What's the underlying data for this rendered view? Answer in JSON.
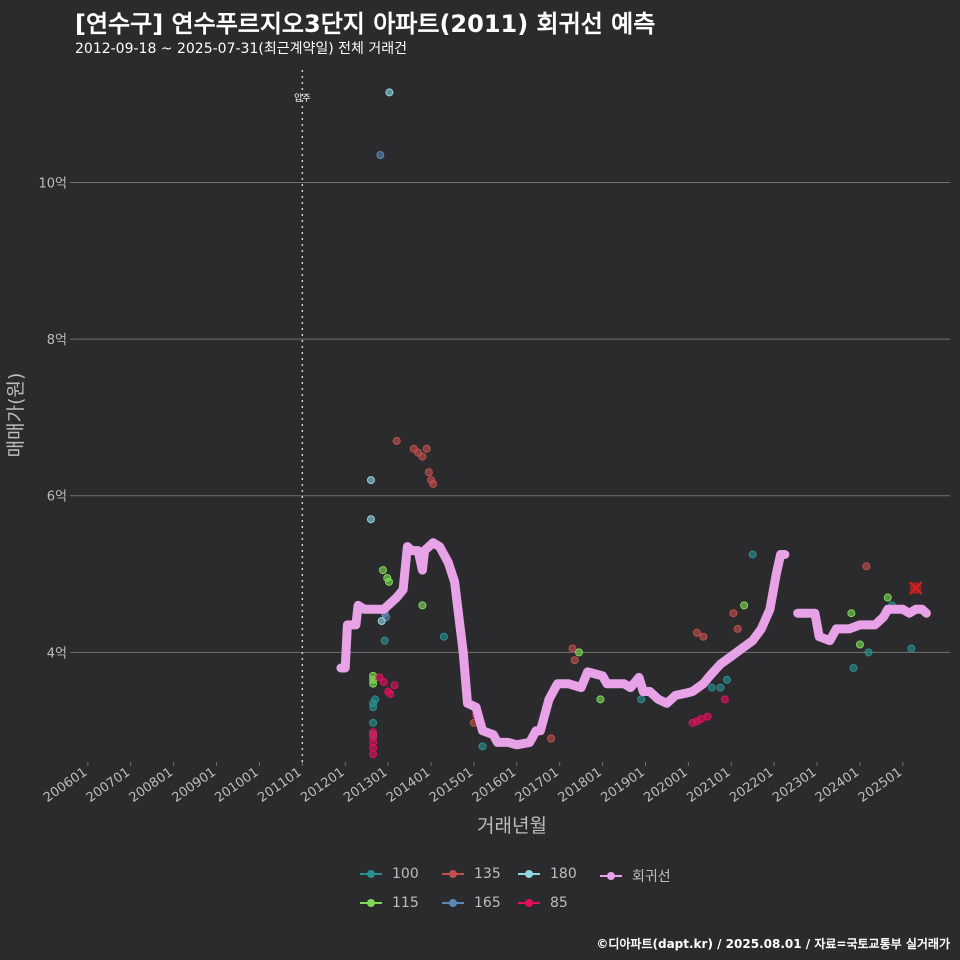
{
  "header": {
    "title": "[연수구] 연수푸르지오3단지 아파트(2011) 회귀선 예측",
    "subtitle": "2012-09-18 ~ 2025-07-31(최근계약일) 전체 거래건"
  },
  "footer": {
    "caption": "©디아파트(dapt.kr) / 2025.08.01 / 자료=국토교통부 실거래가"
  },
  "colors": {
    "background": "#2b2b2d",
    "grid": "#707070",
    "regression": "#e8a3e8",
    "marker": "#e02020",
    "100": "#2a8f8f",
    "115": "#7ed957",
    "135": "#c0504d",
    "165": "#5b86b8",
    "180": "#8fd6e0",
    "85": "#e0105f"
  },
  "chart_data": {
    "type": "scatter",
    "xlabel": "거래년월",
    "ylabel": "매매가(원)",
    "x_range": [
      2005.7,
      2026.1
    ],
    "ylim": [
      2.6,
      11.5
    ],
    "y_ticks": [
      {
        "value": 4,
        "label": "4억"
      },
      {
        "value": 6,
        "label": "6억"
      },
      {
        "value": 8,
        "label": "8억"
      },
      {
        "value": 10,
        "label": "10억"
      }
    ],
    "x_ticks": [
      {
        "value": 2006.0,
        "label": "200601"
      },
      {
        "value": 2007.0,
        "label": "200701"
      },
      {
        "value": 2008.0,
        "label": "200801"
      },
      {
        "value": 2009.0,
        "label": "200901"
      },
      {
        "value": 2010.0,
        "label": "201001"
      },
      {
        "value": 2011.0,
        "label": "201101"
      },
      {
        "value": 2012.0,
        "label": "201201"
      },
      {
        "value": 2013.0,
        "label": "201301"
      },
      {
        "value": 2014.0,
        "label": "201401"
      },
      {
        "value": 2015.0,
        "label": "201501"
      },
      {
        "value": 2016.0,
        "label": "201601"
      },
      {
        "value": 2017.0,
        "label": "201701"
      },
      {
        "value": 2018.0,
        "label": "201801"
      },
      {
        "value": 2019.0,
        "label": "201901"
      },
      {
        "value": 2020.0,
        "label": "202001"
      },
      {
        "value": 2021.0,
        "label": "202101"
      },
      {
        "value": 2022.0,
        "label": "202201"
      },
      {
        "value": 2023.0,
        "label": "202301"
      },
      {
        "value": 2024.0,
        "label": "202401"
      },
      {
        "value": 2025.0,
        "label": "202501"
      }
    ],
    "move_in": {
      "x": 2011.0,
      "label": "입주"
    },
    "legend": [
      "100",
      "115",
      "135",
      "165",
      "180",
      "85",
      "회귀선"
    ],
    "series": [
      {
        "name": "100",
        "points": [
          [
            2012.65,
            3.3
          ],
          [
            2012.65,
            3.1
          ],
          [
            2012.65,
            2.95
          ],
          [
            2012.65,
            3.35
          ],
          [
            2012.7,
            3.4
          ],
          [
            2012.92,
            4.15
          ],
          [
            2014.3,
            4.2
          ],
          [
            2015.2,
            2.8
          ],
          [
            2018.9,
            3.4
          ],
          [
            2020.55,
            3.55
          ],
          [
            2020.75,
            3.55
          ],
          [
            2020.9,
            3.65
          ],
          [
            2021.5,
            5.25
          ],
          [
            2023.85,
            3.8
          ],
          [
            2024.2,
            4.0
          ],
          [
            2025.2,
            4.05
          ],
          [
            2024.75,
            4.6
          ]
        ]
      },
      {
        "name": "115",
        "points": [
          [
            2012.65,
            3.7
          ],
          [
            2012.65,
            3.65
          ],
          [
            2012.65,
            3.6
          ],
          [
            2012.88,
            5.05
          ],
          [
            2012.98,
            4.95
          ],
          [
            2013.02,
            4.9
          ],
          [
            2013.8,
            4.6
          ],
          [
            2017.45,
            4.0
          ],
          [
            2017.95,
            3.4
          ],
          [
            2021.3,
            4.6
          ],
          [
            2023.8,
            4.5
          ],
          [
            2024.0,
            4.1
          ],
          [
            2024.65,
            4.7
          ]
        ]
      },
      {
        "name": "135",
        "points": [
          [
            2013.2,
            6.7
          ],
          [
            2013.6,
            6.6
          ],
          [
            2013.7,
            6.55
          ],
          [
            2013.8,
            6.5
          ],
          [
            2013.9,
            6.6
          ],
          [
            2013.95,
            6.3
          ],
          [
            2014.0,
            6.2
          ],
          [
            2014.05,
            6.15
          ],
          [
            2015.0,
            3.1
          ],
          [
            2016.8,
            2.9
          ],
          [
            2017.3,
            4.05
          ],
          [
            2017.35,
            3.9
          ],
          [
            2020.2,
            4.25
          ],
          [
            2020.35,
            4.2
          ],
          [
            2021.05,
            4.5
          ],
          [
            2021.15,
            4.3
          ],
          [
            2024.15,
            5.1
          ]
        ]
      },
      {
        "name": "165",
        "points": [
          [
            2012.82,
            10.35
          ],
          [
            2012.92,
            4.5
          ],
          [
            2012.95,
            4.45
          ]
        ]
      },
      {
        "name": "180",
        "points": [
          [
            2013.03,
            11.15
          ],
          [
            2012.85,
            4.4
          ],
          [
            2012.6,
            6.2
          ],
          [
            2012.6,
            5.7
          ]
        ]
      },
      {
        "name": "85",
        "points": [
          [
            2012.65,
            2.7
          ],
          [
            2012.65,
            2.78
          ],
          [
            2012.65,
            2.85
          ],
          [
            2012.65,
            2.92
          ],
          [
            2012.65,
            2.98
          ],
          [
            2012.8,
            3.68
          ],
          [
            2012.9,
            3.62
          ],
          [
            2013.0,
            3.5
          ],
          [
            2013.05,
            3.47
          ],
          [
            2013.15,
            3.58
          ],
          [
            2014.8,
            3.58
          ],
          [
            2015.05,
            3.2
          ],
          [
            2020.1,
            3.1
          ],
          [
            2020.2,
            3.12
          ],
          [
            2020.3,
            3.15
          ],
          [
            2020.45,
            3.18
          ],
          [
            2020.85,
            3.4
          ]
        ]
      }
    ],
    "highlight": {
      "x": 2025.3,
      "y": 4.82
    },
    "regression_segments": [
      [
        [
          2011.9,
          3.8
        ],
        [
          2012.0,
          3.8
        ],
        [
          2012.05,
          4.35
        ],
        [
          2012.25,
          4.35
        ],
        [
          2012.3,
          4.6
        ],
        [
          2012.45,
          4.55
        ],
        [
          2012.9,
          4.55
        ],
        [
          2013.2,
          4.7
        ],
        [
          2013.35,
          4.8
        ],
        [
          2013.45,
          5.35
        ],
        [
          2013.55,
          5.3
        ],
        [
          2013.7,
          5.3
        ],
        [
          2013.8,
          5.05
        ],
        [
          2013.85,
          5.3
        ],
        [
          2014.05,
          5.4
        ],
        [
          2014.2,
          5.35
        ],
        [
          2014.4,
          5.15
        ],
        [
          2014.55,
          4.9
        ],
        [
          2014.75,
          4.0
        ],
        [
          2014.85,
          3.35
        ],
        [
          2015.05,
          3.3
        ],
        [
          2015.2,
          3.0
        ],
        [
          2015.45,
          2.95
        ],
        [
          2015.55,
          2.85
        ],
        [
          2015.8,
          2.85
        ],
        [
          2016.0,
          2.82
        ],
        [
          2016.3,
          2.85
        ],
        [
          2016.45,
          3.0
        ],
        [
          2016.55,
          3.0
        ],
        [
          2016.75,
          3.4
        ],
        [
          2016.95,
          3.6
        ],
        [
          2017.2,
          3.6
        ],
        [
          2017.5,
          3.55
        ],
        [
          2017.65,
          3.75
        ],
        [
          2018.0,
          3.7
        ],
        [
          2018.1,
          3.6
        ],
        [
          2018.5,
          3.6
        ],
        [
          2018.65,
          3.55
        ],
        [
          2018.85,
          3.68
        ],
        [
          2018.95,
          3.5
        ],
        [
          2019.1,
          3.5
        ],
        [
          2019.3,
          3.4
        ],
        [
          2019.5,
          3.35
        ],
        [
          2019.7,
          3.45
        ],
        [
          2019.95,
          3.48
        ],
        [
          2020.1,
          3.5
        ],
        [
          2020.35,
          3.6
        ],
        [
          2020.5,
          3.7
        ],
        [
          2020.75,
          3.85
        ],
        [
          2021.0,
          3.95
        ],
        [
          2021.25,
          4.05
        ],
        [
          2021.5,
          4.15
        ],
        [
          2021.7,
          4.3
        ],
        [
          2021.9,
          4.55
        ],
        [
          2022.05,
          5.0
        ],
        [
          2022.15,
          5.25
        ],
        [
          2022.25,
          5.25
        ]
      ],
      [
        [
          2022.55,
          4.5
        ],
        [
          2022.95,
          4.5
        ],
        [
          2023.05,
          4.2
        ],
        [
          2023.3,
          4.15
        ],
        [
          2023.45,
          4.3
        ],
        [
          2023.75,
          4.3
        ],
        [
          2024.0,
          4.35
        ],
        [
          2024.35,
          4.35
        ],
        [
          2024.55,
          4.45
        ],
        [
          2024.65,
          4.55
        ],
        [
          2025.0,
          4.55
        ],
        [
          2025.15,
          4.5
        ],
        [
          2025.3,
          4.55
        ],
        [
          2025.45,
          4.55
        ],
        [
          2025.55,
          4.5
        ]
      ]
    ]
  }
}
